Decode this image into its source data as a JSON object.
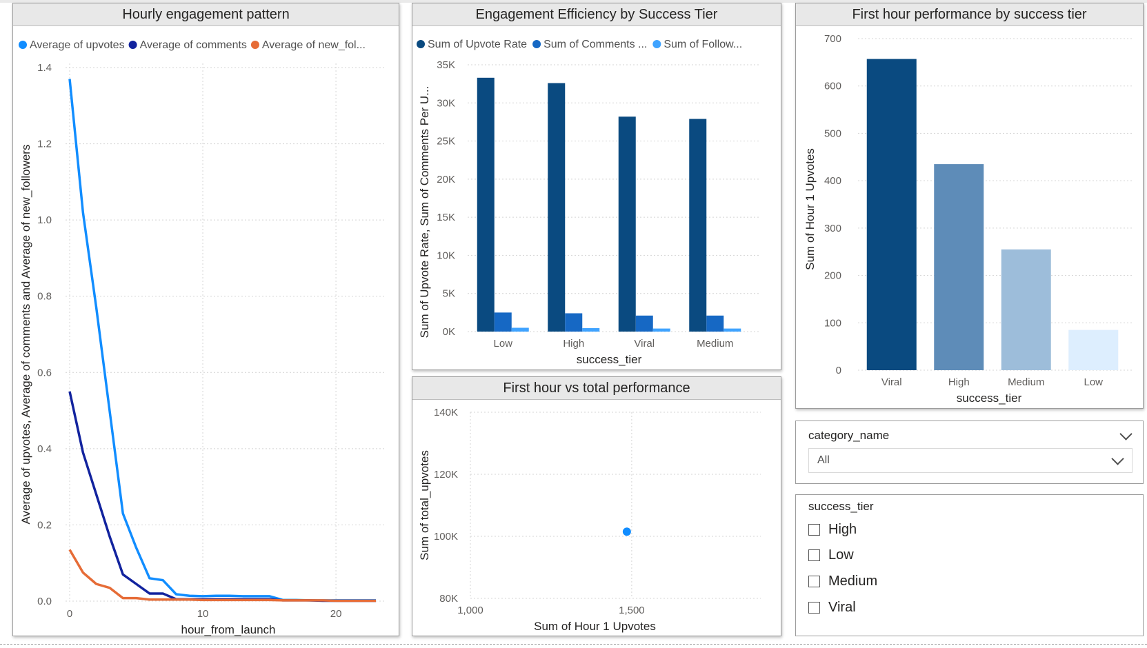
{
  "charts": {
    "hourly": {
      "title": "Hourly engagement pattern",
      "legend": [
        "Average of upvotes",
        "Average of comments",
        "Average of new_fol..."
      ],
      "xlabel": "hour_from_launch",
      "ylabel": "Average of upvotes, Average of comments and Average of new_followers",
      "xticks": [
        "0",
        "10",
        "20"
      ],
      "yticks": [
        "0.0",
        "0.2",
        "0.4",
        "0.6",
        "0.8",
        "1.0",
        "1.2",
        "1.4"
      ]
    },
    "efficiency": {
      "title": "Engagement Efficiency by Success Tier",
      "legend": [
        "Sum of Upvote Rate",
        "Sum of Comments ...",
        "Sum of Follow..."
      ],
      "xlabel": "success_tier",
      "ylabel": "Sum of Upvote Rate, Sum of Comments Per U...",
      "yticks": [
        "0K",
        "5K",
        "10K",
        "15K",
        "20K",
        "25K",
        "30K",
        "35K"
      ]
    },
    "first_hour": {
      "title": "First hour performance by success tier",
      "xlabel": "success_tier",
      "ylabel": "Sum of Hour 1 Upvotes",
      "yticks": [
        "0",
        "100",
        "200",
        "300",
        "400",
        "500",
        "600",
        "700"
      ]
    },
    "scatter": {
      "title": "First hour vs total performance",
      "xlabel": "Sum of Hour 1 Upvotes",
      "ylabel": "Sum of total_upvotes",
      "xticks": [
        "1,000",
        "1,500"
      ],
      "yticks": [
        "80K",
        "100K",
        "120K",
        "140K"
      ]
    }
  },
  "chart_data": [
    {
      "type": "line",
      "x": [
        0,
        1,
        2,
        3,
        4,
        5,
        6,
        7,
        8,
        9,
        10,
        11,
        12,
        13,
        14,
        15,
        16,
        17,
        18,
        19,
        20,
        21,
        22,
        23
      ],
      "xlim": [
        0,
        23
      ],
      "ylim": [
        0,
        1.4
      ],
      "series": [
        {
          "name": "Average of upvotes",
          "color": "#118DFF",
          "values": [
            1.37,
            1.02,
            0.77,
            0.5,
            0.23,
            0.14,
            0.06,
            0.055,
            0.018,
            0.014,
            0.013,
            0.014,
            0.014,
            0.013,
            0.013,
            0.013,
            0.003,
            0.003,
            0.002,
            0.002,
            0.002,
            0.002,
            0.002,
            0.002
          ]
        },
        {
          "name": "Average of comments",
          "color": "#12239E",
          "values": [
            0.55,
            0.39,
            0.28,
            0.17,
            0.07,
            0.045,
            0.02,
            0.02,
            0.005,
            0.005,
            0.005,
            0.005,
            0.005,
            0.005,
            0.005,
            0.005,
            0.002,
            0.002,
            0.002,
            0.001,
            0.001,
            0.001,
            0.001,
            0.001
          ]
        },
        {
          "name": "Average of new_followers",
          "color": "#E66C37",
          "values": [
            0.135,
            0.075,
            0.045,
            0.035,
            0.008,
            0.008,
            0.004,
            0.004,
            0.004,
            0.004,
            0.003,
            0.003,
            0.003,
            0.003,
            0.003,
            0.003,
            0.002,
            0.002,
            0.002,
            0.002,
            0.001,
            0.001,
            0.001,
            0.001
          ]
        }
      ]
    },
    {
      "type": "bar",
      "categories": [
        "Low",
        "High",
        "Viral",
        "Medium"
      ],
      "ylim": [
        0,
        35000
      ],
      "series": [
        {
          "name": "Sum of Upvote Rate",
          "color": "#0A4A80",
          "values": [
            33300,
            32600,
            28200,
            27900
          ]
        },
        {
          "name": "Sum of Comments ...",
          "color": "#1668C4",
          "values": [
            2500,
            2400,
            2100,
            2100
          ]
        },
        {
          "name": "Sum of Follow...",
          "color": "#3FA3FF",
          "values": [
            500,
            450,
            400,
            400
          ]
        }
      ]
    },
    {
      "type": "bar",
      "categories": [
        "Viral",
        "High",
        "Medium",
        "Low"
      ],
      "ylim": [
        0,
        700
      ],
      "colors": [
        "#0A4A80",
        "#5E8CB8",
        "#9DBDDA",
        "#DDEEFE"
      ],
      "values": [
        657,
        435,
        255,
        85
      ]
    },
    {
      "type": "scatter",
      "xlim": [
        1000,
        1900
      ],
      "ylim": [
        80000,
        140000
      ],
      "color": "#118DFF",
      "points": [
        {
          "x": 1485,
          "y": 101500
        }
      ]
    }
  ],
  "slicers": {
    "category": {
      "title": "category_name",
      "value": "All"
    },
    "tier": {
      "title": "success_tier",
      "options": [
        "High",
        "Low",
        "Medium",
        "Viral"
      ]
    }
  }
}
